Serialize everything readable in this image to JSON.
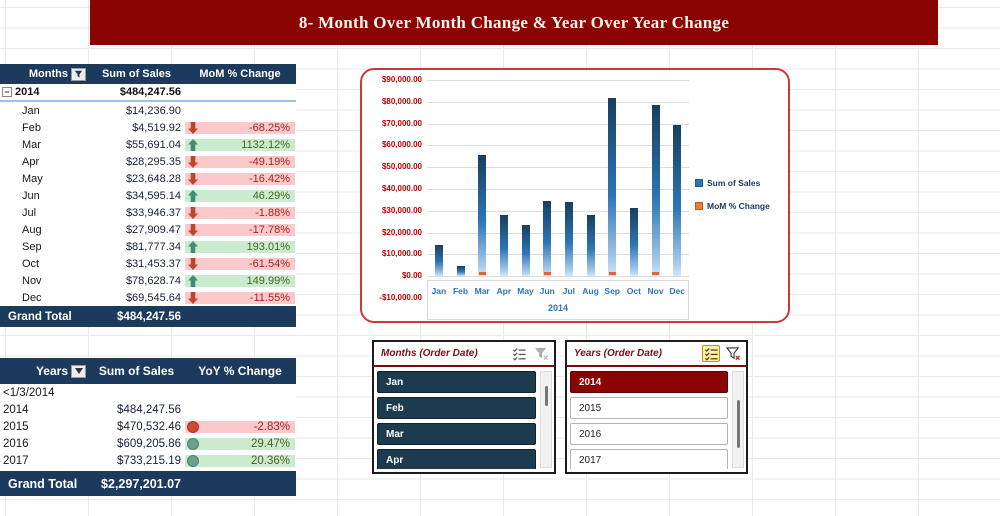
{
  "title": "8- Month Over Month Change & Year Over Year Change",
  "colors": {
    "banner_bg": "#8B0404",
    "header_navy": "#1B3A5C",
    "slicer_item_navy": "#1C3B4E",
    "positive_bg": "#CBEBCE",
    "negative_bg": "#FBC8CC",
    "up_arrow": "#3C8E74",
    "down_arrow": "#C0442C",
    "bar_blue": "#2E75B6",
    "mom_orange": "#E8642C",
    "axis_red": "#C00000",
    "axis_blue": "#2E75B6",
    "chart_border": "#CB3939"
  },
  "mom_table": {
    "headers": [
      "Months",
      "Sum of Sales",
      "MoM % Change"
    ],
    "group_row": {
      "label": "2014",
      "total": "$484,247.56"
    },
    "rows": [
      {
        "month": "Jan",
        "sales": "$14,236.90",
        "trend": null,
        "change": ""
      },
      {
        "month": "Feb",
        "sales": "$4,519.92",
        "trend": "down",
        "change": "-68.25%"
      },
      {
        "month": "Mar",
        "sales": "$55,691.04",
        "trend": "up",
        "change": "1132.12%"
      },
      {
        "month": "Apr",
        "sales": "$28,295.35",
        "trend": "down",
        "change": "-49.19%"
      },
      {
        "month": "May",
        "sales": "$23,648.28",
        "trend": "down",
        "change": "-16.42%"
      },
      {
        "month": "Jun",
        "sales": "$34,595.14",
        "trend": "up",
        "change": "46.29%"
      },
      {
        "month": "Jul",
        "sales": "$33,946.37",
        "trend": "down",
        "change": "-1.88%"
      },
      {
        "month": "Aug",
        "sales": "$27,909.47",
        "trend": "down",
        "change": "-17.78%"
      },
      {
        "month": "Sep",
        "sales": "$81,777.34",
        "trend": "up",
        "change": "193.01%"
      },
      {
        "month": "Oct",
        "sales": "$31,453.37",
        "trend": "down",
        "change": "-61.54%"
      },
      {
        "month": "Nov",
        "sales": "$78,628.74",
        "trend": "up",
        "change": "149.99%"
      },
      {
        "month": "Dec",
        "sales": "$69,545.64",
        "trend": "down",
        "change": "-11.55%"
      }
    ],
    "grand_total": {
      "label": "Grand Total",
      "value": "$484,247.56"
    }
  },
  "yoy_table": {
    "headers": [
      "Years",
      "Sum of Sales",
      "YoY % Change"
    ],
    "rows": [
      {
        "year": "<1/3/2014",
        "sales": "",
        "trend": null,
        "change": ""
      },
      {
        "year": "2014",
        "sales": "$484,247.56",
        "trend": null,
        "change": ""
      },
      {
        "year": "2015",
        "sales": "$470,532.46",
        "trend": "down",
        "change": "-2.83%"
      },
      {
        "year": "2016",
        "sales": "$609,205.86",
        "trend": "up",
        "change": "29.47%"
      },
      {
        "year": "2017",
        "sales": "$733,215.19",
        "trend": "up",
        "change": "20.36%"
      }
    ],
    "grand_total": {
      "label": "Grand Total",
      "value": "$2,297,201.07"
    }
  },
  "chart_data": {
    "type": "bar",
    "title": "",
    "categories": [
      "Jan",
      "Feb",
      "Mar",
      "Apr",
      "May",
      "Jun",
      "Jul",
      "Aug",
      "Sep",
      "Oct",
      "Nov",
      "Dec"
    ],
    "series": [
      {
        "name": "Sum of Sales",
        "values": [
          14236.9,
          4519.92,
          55691.04,
          28295.35,
          23648.28,
          34595.14,
          33946.37,
          27909.47,
          81777.34,
          31453.37,
          78628.74,
          69545.64
        ]
      },
      {
        "name": "MoM % Change",
        "values": [
          null,
          -68.25,
          1132.12,
          -49.19,
          -16.42,
          46.29,
          -1.88,
          -17.78,
          193.01,
          -61.54,
          149.99,
          -11.55
        ]
      }
    ],
    "x_group_label": "2014",
    "y_ticks": [
      "$90,000.00",
      "$80,000.00",
      "$70,000.00",
      "$60,000.00",
      "$50,000.00",
      "$40,000.00",
      "$30,000.00",
      "$20,000.00",
      "$10,000.00",
      "$0.00",
      "-$10,000.00"
    ],
    "ylim": [
      -10000,
      90000
    ],
    "grid": true,
    "legend": [
      "Sum of Sales",
      "MoM % Change"
    ],
    "legend_position": "right"
  },
  "slicers": [
    {
      "title": "Months (Order Date)",
      "multiselect_active": false,
      "clear_enabled": false,
      "items": [
        {
          "label": "Jan",
          "selected": true
        },
        {
          "label": "Feb",
          "selected": true
        },
        {
          "label": "Mar",
          "selected": true
        },
        {
          "label": "Apr",
          "selected": true
        }
      ]
    },
    {
      "title": "Years (Order Date)",
      "multiselect_active": true,
      "clear_enabled": true,
      "items": [
        {
          "label": "2014",
          "selected": true
        },
        {
          "label": "2015",
          "selected": false
        },
        {
          "label": "2016",
          "selected": false
        },
        {
          "label": "2017",
          "selected": false
        }
      ]
    }
  ]
}
